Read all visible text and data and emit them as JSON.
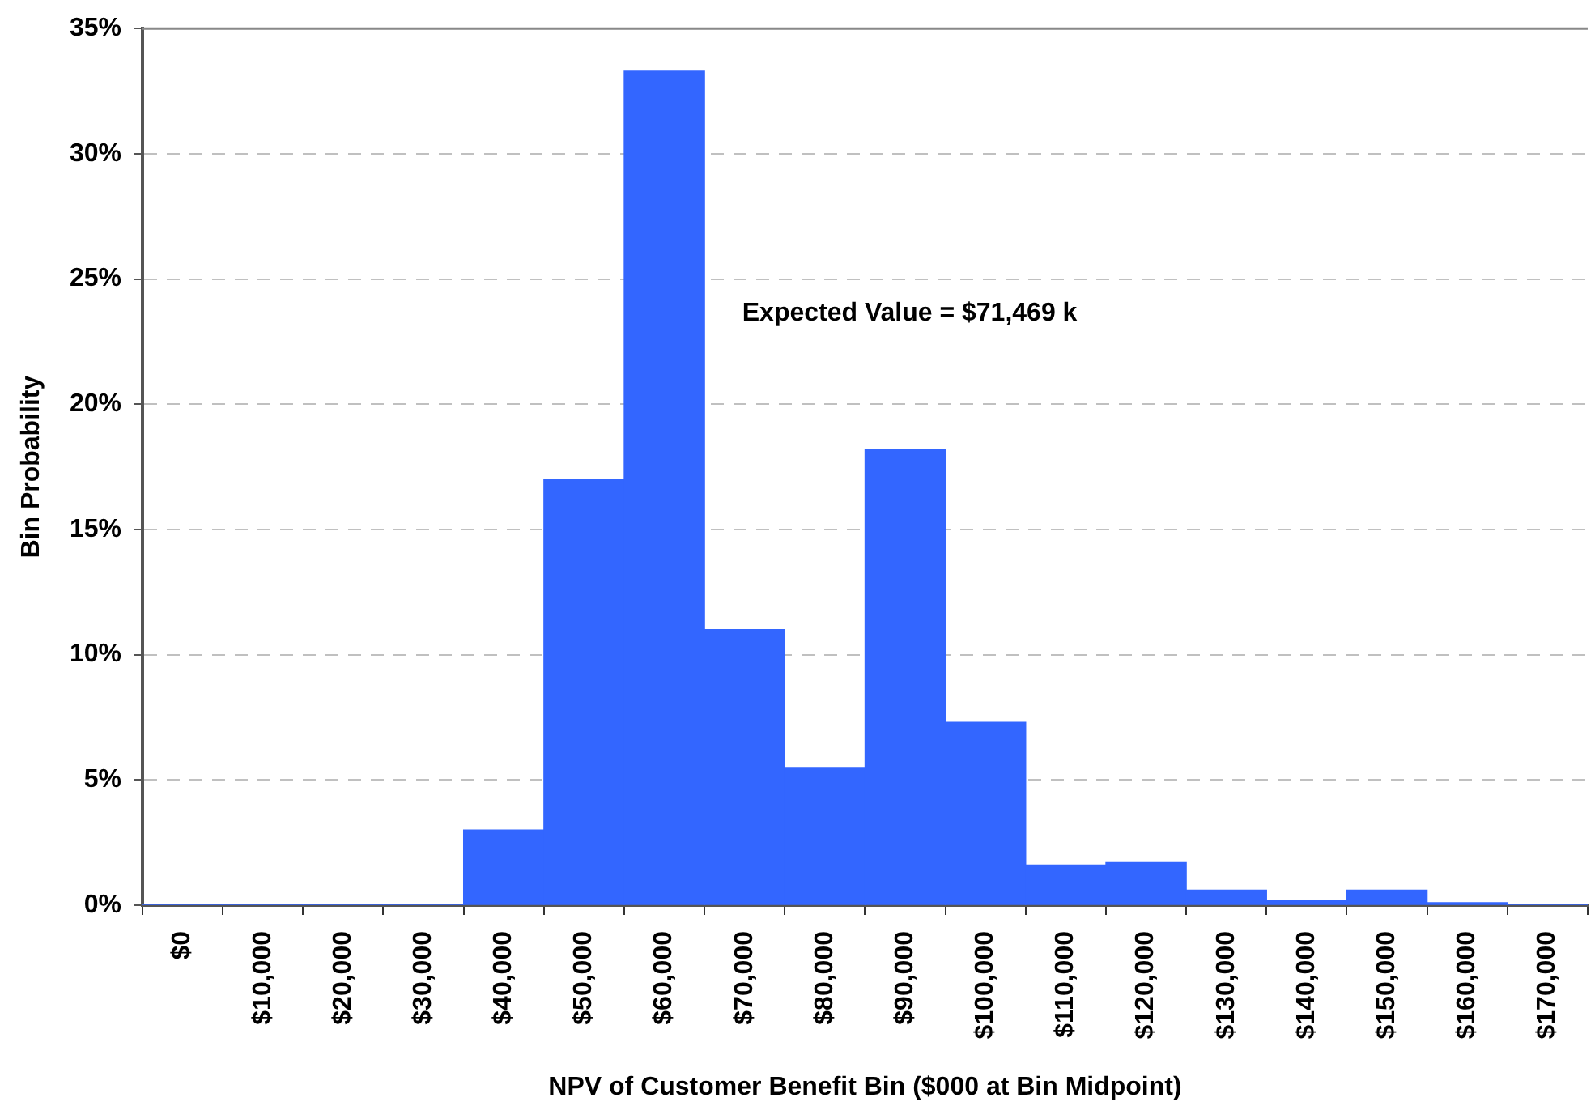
{
  "chart_data": {
    "type": "bar",
    "categories": [
      "$0",
      "$10,000",
      "$20,000",
      "$30,000",
      "$40,000",
      "$50,000",
      "$60,000",
      "$70,000",
      "$80,000",
      "$90,000",
      "$100,000",
      "$110,000",
      "$120,000",
      "$130,000",
      "$140,000",
      "$150,000",
      "$160,000",
      "$170,000"
    ],
    "values": [
      0,
      0,
      0,
      0,
      3.0,
      17.0,
      33.3,
      11.0,
      5.5,
      18.2,
      7.3,
      1.6,
      1.7,
      0.6,
      0.2,
      0.6,
      0.1,
      0
    ],
    "color": "#3366ff",
    "ylim": [
      0,
      35
    ],
    "yticks": [
      {
        "value": 0,
        "label": "0%"
      },
      {
        "value": 5,
        "label": "5%"
      },
      {
        "value": 10,
        "label": "10%"
      },
      {
        "value": 15,
        "label": "15%"
      },
      {
        "value": 20,
        "label": "20%"
      },
      {
        "value": 25,
        "label": "25%"
      },
      {
        "value": 30,
        "label": "30%"
      },
      {
        "value": 35,
        "label": "35%"
      }
    ],
    "grid": "y",
    "xlabel": "NPV of Customer Benefit Bin ($000 at Bin Midpoint)",
    "ylabel": "Bin Probability",
    "annotations": [
      "Expected Value = $71,469 k"
    ]
  }
}
